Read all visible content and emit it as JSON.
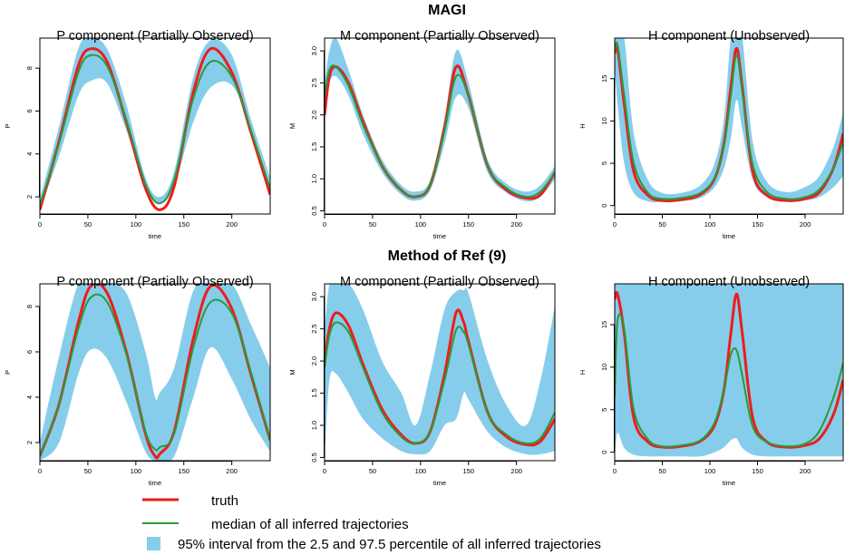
{
  "figure": {
    "section_titles": [
      "MAGI",
      "Method of Ref (9)"
    ],
    "legend": {
      "truth": "truth",
      "median": "median of all inferred trajectories",
      "interval": "95% interval from the 2.5 and 97.5 percentile of all inferred trajectories"
    },
    "colors": {
      "truth": "#ee1c1c",
      "median": "#2a9a3a",
      "band": "#86cdeb"
    }
  },
  "chart_data": [
    {
      "type": "line",
      "panel": "MAGI-P",
      "title": "P component (Partially Observed)",
      "xlabel": "time",
      "ylabel": "P",
      "xlim": [
        0,
        240
      ],
      "ylim": [
        1.2,
        9.4
      ],
      "xticks": [
        0,
        50,
        100,
        150,
        200
      ],
      "yticks": [
        2,
        4,
        6,
        8
      ],
      "x": [
        0,
        20,
        40,
        53,
        70,
        90,
        110,
        125,
        140,
        160,
        178,
        200,
        220,
        240
      ],
      "series": [
        {
          "name": "truth",
          "values": [
            1.4,
            4.6,
            8.1,
            8.9,
            8.3,
            5.5,
            2.4,
            1.4,
            2.5,
            6.9,
            8.9,
            7.8,
            5.0,
            2.1
          ]
        },
        {
          "name": "median",
          "values": [
            1.6,
            4.5,
            7.8,
            8.6,
            8.1,
            5.6,
            2.6,
            1.7,
            2.8,
            6.6,
            8.3,
            7.6,
            5.1,
            2.4
          ]
        }
      ],
      "band": {
        "lower": [
          1.4,
          3.9,
          6.7,
          7.4,
          7.3,
          5.1,
          2.5,
          1.7,
          2.5,
          5.5,
          7.1,
          7.2,
          5.2,
          2.6
        ],
        "upper": [
          1.9,
          5.3,
          8.9,
          9.4,
          8.9,
          6.3,
          2.9,
          2.0,
          3.2,
          7.6,
          9.3,
          8.6,
          5.6,
          2.9
        ]
      }
    },
    {
      "type": "line",
      "panel": "MAGI-M",
      "title": "M component (Partially Observed)",
      "xlabel": "time",
      "ylabel": "M",
      "xlim": [
        0,
        240
      ],
      "ylim": [
        0.45,
        3.2
      ],
      "xticks": [
        0,
        50,
        100,
        150,
        200
      ],
      "yticks": [
        0.5,
        1.0,
        1.5,
        2.0,
        2.5,
        3.0
      ],
      "yticklabels": [
        "0.5",
        "1.0",
        "1.5",
        "2.0",
        "2.5",
        "3.0"
      ],
      "x": [
        0,
        5,
        12,
        25,
        40,
        60,
        80,
        95,
        110,
        125,
        137,
        150,
        170,
        190,
        210,
        225,
        240
      ],
      "series": [
        {
          "name": "truth",
          "values": [
            2.0,
            2.6,
            2.75,
            2.5,
            1.9,
            1.2,
            0.82,
            0.72,
            0.9,
            1.8,
            2.75,
            2.3,
            1.2,
            0.82,
            0.7,
            0.75,
            1.1
          ]
        },
        {
          "name": "median",
          "values": [
            2.3,
            2.7,
            2.75,
            2.45,
            1.85,
            1.2,
            0.82,
            0.72,
            0.9,
            1.75,
            2.6,
            2.3,
            1.2,
            0.85,
            0.72,
            0.8,
            1.1
          ]
        }
      ],
      "band": {
        "lower": [
          2.1,
          2.5,
          2.6,
          2.3,
          1.7,
          1.1,
          0.75,
          0.66,
          0.82,
          1.55,
          2.28,
          2.1,
          1.1,
          0.78,
          0.65,
          0.72,
          1.0
        ],
        "upper": [
          2.5,
          3.0,
          3.2,
          2.7,
          2.0,
          1.3,
          0.9,
          0.8,
          0.98,
          1.95,
          3.0,
          2.5,
          1.3,
          0.92,
          0.8,
          0.9,
          1.2
        ]
      }
    },
    {
      "type": "line",
      "panel": "MAGI-H",
      "title": "H component (Unobserved)",
      "xlabel": "time",
      "ylabel": "H",
      "xlim": [
        0,
        240
      ],
      "ylim": [
        -1,
        19.8
      ],
      "xticks": [
        0,
        50,
        100,
        150,
        200
      ],
      "yticks": [
        0,
        5,
        10,
        15
      ],
      "x": [
        0,
        3,
        10,
        20,
        35,
        50,
        70,
        90,
        105,
        115,
        122,
        128,
        134,
        145,
        160,
        180,
        200,
        215,
        230,
        240
      ],
      "series": [
        {
          "name": "truth",
          "values": [
            18.0,
            18.6,
            12.0,
            4.0,
            1.2,
            0.6,
            0.7,
            1.3,
            3.2,
            7.5,
            14.0,
            18.6,
            14.0,
            4.0,
            1.2,
            0.6,
            0.8,
            1.6,
            4.5,
            8.5
          ]
        },
        {
          "name": "median",
          "values": [
            18.4,
            19.0,
            13.0,
            5.0,
            1.5,
            0.8,
            0.9,
            1.5,
            3.3,
            7.3,
            13.0,
            17.8,
            13.5,
            4.8,
            1.6,
            0.8,
            1.0,
            1.9,
            4.5,
            7.5
          ]
        }
      ],
      "band": {
        "lower": [
          16.5,
          12.0,
          5.0,
          1.5,
          0.5,
          0.4,
          0.5,
          0.9,
          2.2,
          4.5,
          8.0,
          12.5,
          9.0,
          3.0,
          1.0,
          0.5,
          0.6,
          1.0,
          2.2,
          3.5
        ],
        "upper": [
          19.8,
          19.8,
          19.8,
          8.5,
          3.0,
          1.5,
          1.5,
          2.4,
          5.0,
          10.5,
          19.8,
          19.8,
          19.8,
          7.5,
          2.8,
          1.6,
          2.2,
          3.5,
          7.0,
          11.0
        ]
      }
    },
    {
      "type": "line",
      "panel": "Ref9-P",
      "title": "P component (Partially Observed)",
      "xlabel": "time",
      "ylabel": "P",
      "xlim": [
        0,
        240
      ],
      "ylim": [
        1.2,
        9.0
      ],
      "xticks": [
        0,
        50,
        100,
        150,
        200
      ],
      "yticks": [
        2,
        4,
        6,
        8
      ],
      "x": [
        0,
        20,
        40,
        53,
        70,
        90,
        110,
        120,
        125,
        140,
        160,
        178,
        200,
        220,
        240
      ],
      "series": [
        {
          "name": "truth",
          "values": [
            1.4,
            3.7,
            7.3,
            8.9,
            8.6,
            6.0,
            2.4,
            1.4,
            1.5,
            2.5,
            6.6,
            8.9,
            7.9,
            5.0,
            2.1
          ]
        },
        {
          "name": "median",
          "values": [
            1.4,
            3.7,
            7.0,
            8.4,
            8.2,
            5.9,
            2.5,
            1.7,
            1.8,
            2.4,
            6.2,
            8.2,
            7.7,
            5.1,
            2.1
          ]
        }
      ],
      "band": {
        "lower": [
          1.2,
          2.0,
          5.0,
          6.1,
          5.7,
          3.8,
          1.6,
          1.2,
          1.2,
          1.4,
          4.0,
          6.2,
          4.8,
          3.0,
          1.6
        ],
        "upper": [
          2.0,
          5.8,
          9.0,
          9.0,
          9.0,
          8.6,
          6.0,
          4.0,
          4.2,
          5.3,
          8.7,
          9.0,
          9.0,
          7.2,
          5.3
        ]
      }
    },
    {
      "type": "line",
      "panel": "Ref9-M",
      "title": "M component (Partially Observed)",
      "xlabel": "time",
      "ylabel": "M",
      "xlim": [
        0,
        240
      ],
      "ylim": [
        0.45,
        3.2
      ],
      "xticks": [
        0,
        50,
        100,
        150,
        200
      ],
      "yticks": [
        0.5,
        1.0,
        1.5,
        2.0,
        2.5,
        3.0
      ],
      "yticklabels": [
        "0.5",
        "1.0",
        "1.5",
        "2.0",
        "2.5",
        "3.0"
      ],
      "x": [
        0,
        5,
        12,
        25,
        40,
        60,
        80,
        95,
        110,
        125,
        137,
        145,
        150,
        170,
        190,
        210,
        225,
        240
      ],
      "series": [
        {
          "name": "truth",
          "values": [
            2.0,
            2.5,
            2.75,
            2.55,
            1.95,
            1.25,
            0.85,
            0.72,
            0.9,
            1.8,
            2.75,
            2.6,
            2.3,
            1.2,
            0.82,
            0.7,
            0.75,
            1.1
          ]
        },
        {
          "name": "median",
          "values": [
            1.9,
            2.4,
            2.6,
            2.45,
            1.9,
            1.2,
            0.82,
            0.72,
            0.9,
            1.7,
            2.48,
            2.45,
            2.25,
            1.2,
            0.85,
            0.72,
            0.8,
            1.2
          ]
        }
      ],
      "band": {
        "lower": [
          0.5,
          1.7,
          1.8,
          1.5,
          1.1,
          0.8,
          0.6,
          0.55,
          0.6,
          1.0,
          1.1,
          1.5,
          1.4,
          0.9,
          0.65,
          0.55,
          0.55,
          0.6
        ],
        "upper": [
          2.5,
          3.2,
          3.2,
          3.2,
          2.8,
          2.0,
          1.5,
          1.0,
          1.8,
          2.8,
          3.08,
          3.1,
          3.05,
          2.0,
          1.3,
          1.0,
          1.7,
          2.85
        ]
      }
    },
    {
      "type": "line",
      "panel": "Ref9-H",
      "title": "H component (Unobserved)",
      "xlabel": "time",
      "ylabel": "H",
      "xlim": [
        0,
        240
      ],
      "ylim": [
        -1,
        19.8
      ],
      "xticks": [
        0,
        50,
        100,
        150,
        200
      ],
      "yticks": [
        0,
        5,
        10,
        15
      ],
      "x": [
        0,
        3,
        10,
        20,
        35,
        50,
        70,
        90,
        105,
        115,
        122,
        128,
        134,
        145,
        160,
        180,
        200,
        215,
        230,
        240
      ],
      "series": [
        {
          "name": "truth",
          "values": [
            18.0,
            18.6,
            14.0,
            4.0,
            1.2,
            0.6,
            0.7,
            1.3,
            3.2,
            7.5,
            14.0,
            18.6,
            14.0,
            4.0,
            1.2,
            0.6,
            0.8,
            1.6,
            4.5,
            8.5
          ]
        },
        {
          "name": "median",
          "values": [
            6.5,
            15.5,
            14.5,
            5.0,
            1.5,
            0.7,
            0.8,
            1.4,
            3.5,
            7.5,
            11.5,
            12.0,
            9.0,
            3.0,
            1.2,
            0.7,
            1.0,
            2.5,
            6.5,
            10.5
          ]
        }
      ],
      "band": {
        "lower": [
          -0.6,
          2.3,
          0.5,
          -0.3,
          -0.5,
          -0.5,
          -0.5,
          -0.5,
          0.0,
          0.6,
          1.4,
          1.6,
          0.5,
          -0.3,
          -0.5,
          -0.5,
          -0.5,
          -0.5,
          -0.5,
          -0.5
        ],
        "upper": [
          19.8,
          19.8,
          19.8,
          19.8,
          19.8,
          19.8,
          19.8,
          19.8,
          19.8,
          19.8,
          19.8,
          19.8,
          19.8,
          19.8,
          19.8,
          19.8,
          19.8,
          19.8,
          19.8,
          19.8
        ]
      }
    }
  ]
}
